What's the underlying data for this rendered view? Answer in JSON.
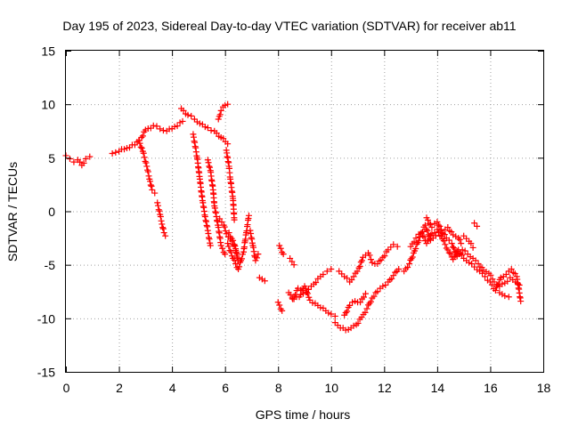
{
  "chart_data": {
    "type": "scatter",
    "title": "Day 195 of 2023, Sidereal Day-to-day VTEC variation (SDTVAR) for receiver ab11",
    "xlabel": "GPS time / hours",
    "ylabel": "SDTVAR / TECUs",
    "xlim": [
      0,
      18
    ],
    "ylim": [
      -15,
      15
    ],
    "xticks": [
      "0",
      "2",
      "4",
      "6",
      "8",
      "10",
      "12",
      "14",
      "16",
      "18"
    ],
    "yticks": [
      "15",
      "10",
      "5",
      "0",
      "-5",
      "-10",
      "-15"
    ],
    "grid": true,
    "marker": "+",
    "color": "#ff0000",
    "series": [
      {
        "name": "SDTVAR",
        "segments": [
          [
            [
              0.0,
              5.2
            ],
            [
              0.15,
              4.9
            ],
            [
              0.3,
              4.6
            ],
            [
              0.45,
              4.8
            ],
            [
              0.6,
              4.3
            ],
            [
              0.75,
              4.9
            ],
            [
              0.9,
              5.1
            ]
          ],
          [
            [
              1.75,
              5.4
            ],
            [
              2.0,
              5.6
            ],
            [
              2.3,
              5.9
            ],
            [
              2.6,
              6.2
            ],
            [
              2.85,
              6.9
            ],
            [
              3.0,
              7.6
            ],
            [
              3.3,
              8.0
            ],
            [
              3.55,
              7.7
            ],
            [
              3.8,
              7.5
            ],
            [
              4.1,
              7.9
            ],
            [
              4.4,
              8.4
            ]
          ],
          [
            [
              2.75,
              6.6
            ],
            [
              2.9,
              5.6
            ],
            [
              3.05,
              4.2
            ],
            [
              3.15,
              3.0
            ],
            [
              3.25,
              2.0
            ],
            [
              3.35,
              1.7
            ]
          ],
          [
            [
              3.45,
              0.8
            ],
            [
              3.55,
              -0.3
            ],
            [
              3.62,
              -1.2
            ],
            [
              3.7,
              -2.0
            ],
            [
              3.75,
              -2.3
            ]
          ],
          [
            [
              4.35,
              9.6
            ],
            [
              4.6,
              9.0
            ],
            [
              4.85,
              8.6
            ],
            [
              5.05,
              8.2
            ],
            [
              5.35,
              7.8
            ],
            [
              5.6,
              7.5
            ],
            [
              5.85,
              6.9
            ],
            [
              6.1,
              6.3
            ]
          ],
          [
            [
              5.75,
              8.6
            ],
            [
              5.85,
              9.4
            ],
            [
              6.0,
              9.9
            ],
            [
              6.1,
              10.0
            ]
          ],
          [
            [
              4.8,
              7.2
            ],
            [
              4.95,
              5.0
            ],
            [
              5.05,
              3.0
            ],
            [
              5.15,
              1.0
            ],
            [
              5.25,
              -0.5
            ],
            [
              5.35,
              -1.8
            ],
            [
              5.45,
              -3.2
            ]
          ],
          [
            [
              5.35,
              4.8
            ],
            [
              5.45,
              3.8
            ],
            [
              5.55,
              2.0
            ],
            [
              5.6,
              0.5
            ],
            [
              5.75,
              -1.5
            ],
            [
              5.85,
              -3.2
            ],
            [
              6.0,
              -4.0
            ]
          ],
          [
            [
              6.05,
              5.7
            ],
            [
              6.15,
              4.2
            ],
            [
              6.2,
              3.0
            ],
            [
              6.3,
              1.2
            ],
            [
              6.35,
              -0.8
            ]
          ],
          [
            [
              5.8,
              -0.7
            ],
            [
              5.95,
              -1.3
            ],
            [
              6.05,
              -2.1
            ],
            [
              6.2,
              -2.6
            ],
            [
              6.4,
              -3.5
            ],
            [
              6.5,
              -4.6
            ],
            [
              6.35,
              -3.1
            ],
            [
              6.15,
              -2.0
            ]
          ],
          [
            [
              6.1,
              -3.0
            ],
            [
              6.3,
              -4.4
            ],
            [
              6.5,
              -5.4
            ],
            [
              6.7,
              -3.8
            ],
            [
              6.8,
              -2.0
            ],
            [
              6.9,
              -0.4
            ]
          ],
          [
            [
              6.95,
              -1.8
            ],
            [
              7.05,
              -3.2
            ],
            [
              7.15,
              -4.6
            ],
            [
              7.25,
              -4.0
            ]
          ],
          [
            [
              7.3,
              -6.2
            ],
            [
              7.5,
              -6.5
            ]
          ],
          [
            [
              8.05,
              -3.2
            ],
            [
              8.2,
              -4.0
            ]
          ],
          [
            [
              8.45,
              -4.4
            ],
            [
              8.6,
              -5.0
            ]
          ],
          [
            [
              8.0,
              -8.5
            ],
            [
              8.15,
              -9.3
            ]
          ],
          [
            [
              8.4,
              -7.6
            ],
            [
              8.6,
              -8.2
            ],
            [
              8.8,
              -8.0
            ],
            [
              9.0,
              -7.0
            ],
            [
              9.2,
              -8.3
            ],
            [
              9.4,
              -8.6
            ],
            [
              9.6,
              -9.0
            ],
            [
              9.8,
              -9.3
            ],
            [
              10.0,
              -9.6
            ],
            [
              10.15,
              -9.8
            ]
          ],
          [
            [
              8.55,
              -8.2
            ],
            [
              8.75,
              -7.2
            ],
            [
              8.95,
              -7.7
            ],
            [
              9.15,
              -7.3
            ],
            [
              9.35,
              -6.8
            ],
            [
              9.5,
              -6.3
            ],
            [
              9.7,
              -5.9
            ],
            [
              9.85,
              -5.6
            ],
            [
              10.0,
              -5.4
            ]
          ],
          [
            [
              10.15,
              -10.4
            ],
            [
              10.35,
              -10.9
            ],
            [
              10.55,
              -11.1
            ],
            [
              10.75,
              -10.9
            ],
            [
              10.95,
              -10.6
            ],
            [
              11.15,
              -9.9
            ],
            [
              11.35,
              -9.1
            ],
            [
              11.55,
              -8.1
            ],
            [
              11.75,
              -7.5
            ],
            [
              11.95,
              -7.0
            ],
            [
              12.15,
              -6.6
            ],
            [
              12.35,
              -6.0
            ],
            [
              12.55,
              -5.4
            ]
          ],
          [
            [
              10.5,
              -9.7
            ],
            [
              10.7,
              -8.8
            ],
            [
              10.9,
              -8.4
            ],
            [
              11.1,
              -8.5
            ],
            [
              11.3,
              -7.7
            ]
          ],
          [
            [
              10.3,
              -5.6
            ],
            [
              10.5,
              -6.1
            ],
            [
              10.7,
              -6.6
            ],
            [
              10.85,
              -6.1
            ],
            [
              11.05,
              -5.3
            ],
            [
              11.2,
              -4.3
            ],
            [
              11.4,
              -3.9
            ],
            [
              11.55,
              -4.8
            ],
            [
              11.75,
              -4.9
            ],
            [
              11.95,
              -4.3
            ],
            [
              12.15,
              -3.6
            ],
            [
              12.35,
              -3.1
            ],
            [
              12.5,
              -3.3
            ]
          ],
          [
            [
              12.75,
              -5.6
            ],
            [
              12.95,
              -4.9
            ],
            [
              13.15,
              -3.7
            ],
            [
              13.35,
              -2.4
            ],
            [
              13.55,
              -1.3
            ],
            [
              13.75,
              -2.7
            ],
            [
              13.95,
              -2.3
            ],
            [
              14.15,
              -1.8
            ],
            [
              14.35,
              -2.5
            ],
            [
              14.55,
              -3.0
            ],
            [
              14.75,
              -4.2
            ],
            [
              14.95,
              -3.6
            ],
            [
              15.15,
              -4.0
            ],
            [
              15.35,
              -4.4
            ],
            [
              15.55,
              -4.9
            ],
            [
              15.75,
              -5.5
            ],
            [
              15.95,
              -5.8
            ],
            [
              16.15,
              -6.6
            ],
            [
              16.35,
              -7.0
            ],
            [
              16.55,
              -6.7
            ],
            [
              16.75,
              -6.2
            ],
            [
              16.95,
              -6.6
            ],
            [
              17.1,
              -6.9
            ]
          ],
          [
            [
              13.0,
              -3.3
            ],
            [
              13.2,
              -2.5
            ],
            [
              13.4,
              -2.0
            ],
            [
              13.6,
              -3.0
            ],
            [
              13.8,
              -2.1
            ],
            [
              14.0,
              -1.7
            ],
            [
              14.2,
              -2.6
            ],
            [
              14.4,
              -3.6
            ],
            [
              14.6,
              -4.5
            ],
            [
              14.8,
              -3.6
            ],
            [
              15.0,
              -4.4
            ],
            [
              15.2,
              -4.8
            ],
            [
              15.4,
              -5.2
            ],
            [
              15.6,
              -5.6
            ],
            [
              15.8,
              -6.1
            ],
            [
              16.0,
              -6.6
            ],
            [
              16.2,
              -7.4
            ],
            [
              16.4,
              -6.2
            ],
            [
              16.6,
              -5.9
            ],
            [
              16.8,
              -5.4
            ],
            [
              17.0,
              -6.1
            ],
            [
              17.15,
              -8.4
            ]
          ],
          [
            [
              13.6,
              -0.6
            ],
            [
              13.8,
              -1.5
            ],
            [
              14.0,
              -1.0
            ],
            [
              14.2,
              -2.0
            ],
            [
              14.4,
              -1.5
            ],
            [
              14.6,
              -2.2
            ],
            [
              14.8,
              -2.5
            ],
            [
              14.9,
              -3.0
            ]
          ],
          [
            [
              15.0,
              -2.3
            ],
            [
              15.2,
              -2.8
            ],
            [
              15.35,
              -3.4
            ]
          ],
          [
            [
              15.4,
              -1.1
            ],
            [
              15.5,
              -1.4
            ]
          ],
          [
            [
              16.35,
              -7.6
            ],
            [
              16.55,
              -7.9
            ],
            [
              16.7,
              -8.0
            ]
          ]
        ]
      }
    ]
  }
}
